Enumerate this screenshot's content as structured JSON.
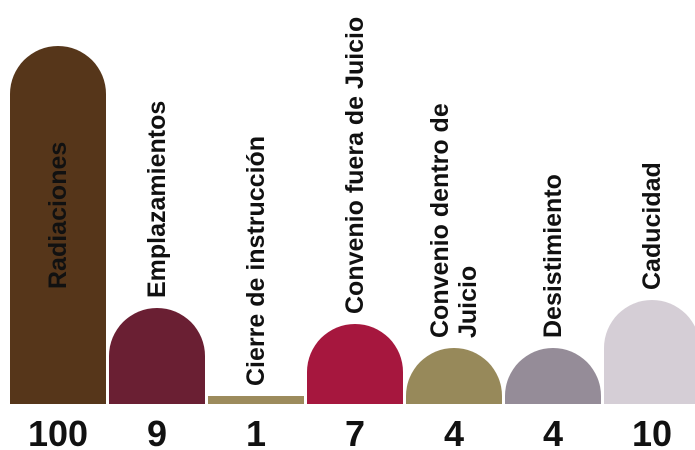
{
  "chart_data": {
    "type": "bar",
    "title": "",
    "xlabel": "",
    "ylabel": "",
    "categories": [
      "Radiaciones",
      "Emplazamientos",
      "Cierre de instrucción",
      "Convenio fuera de Juicio",
      "Convenio dentro de Juicio",
      "Desistimiento",
      "Caducidad"
    ],
    "category_lines": [
      [
        "Radiaciones"
      ],
      [
        "Emplazamientos"
      ],
      [
        "Cierre de instrucción"
      ],
      [
        "Convenio fuera de Juicio"
      ],
      [
        "Convenio dentro de",
        "Juicio"
      ],
      [
        "Desistimiento"
      ],
      [
        "Caducidad"
      ]
    ],
    "values": [
      100,
      9,
      1,
      7,
      4,
      4,
      10
    ],
    "value_labels": [
      "100",
      "9",
      "1",
      "7",
      "4",
      "4",
      "10"
    ],
    "colors": [
      "#56361a",
      "#6a1f33",
      "#9c8b5c",
      "#a6173e",
      "#97895a",
      "#958c98",
      "#d5ced6"
    ],
    "label_color": "#111111"
  }
}
